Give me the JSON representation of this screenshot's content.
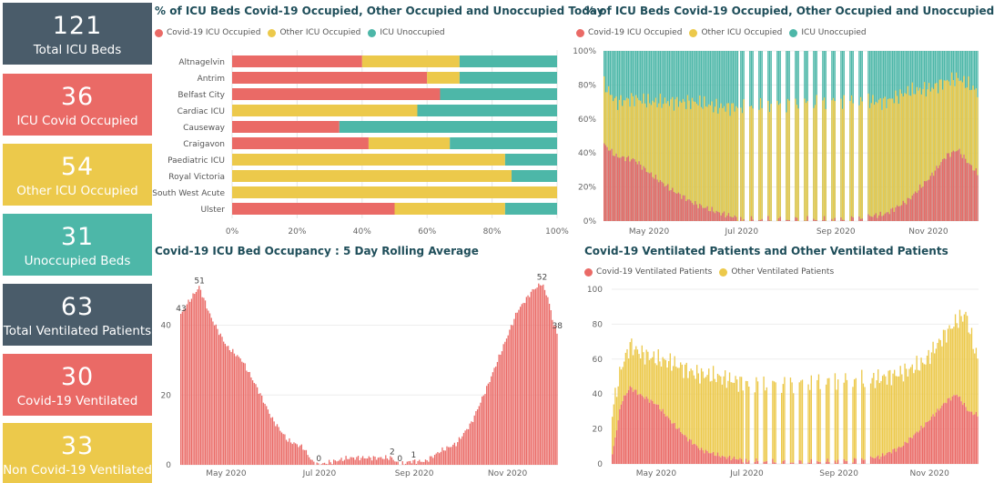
{
  "colors": {
    "covid": "#EA6A66",
    "other": "#ECC94B",
    "unocc": "#4DB7A8",
    "dark": "#4A5C6A"
  },
  "cards": [
    {
      "value": "121",
      "label": "Total ICU Beds",
      "color": "#4A5C6A"
    },
    {
      "value": "36",
      "label": "ICU Covid Occupied",
      "color": "#EA6A66"
    },
    {
      "value": "54",
      "label": "Other ICU Occupied",
      "color": "#ECC94B"
    },
    {
      "value": "31",
      "label": "Unoccupied Beds",
      "color": "#4DB7A8"
    },
    {
      "value": "63",
      "label": "Total Ventilated Patients",
      "color": "#4A5C6A"
    },
    {
      "value": "30",
      "label": "Covid-19 Ventilated",
      "color": "#EA6A66"
    },
    {
      "value": "33",
      "label": "Non Covid-19 Ventilated",
      "color": "#ECC94B"
    }
  ],
  "panels": {
    "today": {
      "title": "% of ICU Beds Covid-19 Occupied, Other Occupied and Unoccupied Today",
      "legend": [
        "Covid-19 ICU Occupied",
        "Other ICU Occupied",
        "ICU Unoccupied"
      ]
    },
    "trend": {
      "title": "% of ICU Beds Covid-19 Occupied, Other Occupied and Unoccupied",
      "legend": [
        "Covid-19 ICU Occupied",
        "Other ICU Occupied",
        "ICU Unoccupied"
      ]
    },
    "rolling": {
      "title": "Covid-19 ICU Bed Occupancy : 5 Day Rolling Average"
    },
    "vent": {
      "title": "Covid-19 Ventilated Patients and Other Ventilated Patients",
      "legend": [
        "Covid-19 Ventilated Patients",
        "Other Ventilated Patients"
      ]
    }
  },
  "chart_data": [
    {
      "type": "bar",
      "stacked": true,
      "orientation": "horizontal",
      "title": "% of ICU Beds Covid-19 Occupied, Other Occupied and Unoccupied Today",
      "categories": [
        "Altnagelvin",
        "Antrim",
        "Belfast City",
        "Cardiac ICU",
        "Causeway",
        "Craigavon",
        "Paediatric ICU",
        "Royal Victoria",
        "South West Acute",
        "Ulster"
      ],
      "series": [
        {
          "name": "Covid-19 ICU Occupied",
          "values": [
            40,
            60,
            64,
            0,
            33,
            42,
            0,
            0,
            0,
            50
          ]
        },
        {
          "name": "Other ICU Occupied",
          "values": [
            30,
            10,
            0,
            57,
            0,
            25,
            84,
            86,
            100,
            34
          ]
        },
        {
          "name": "ICU Unoccupied",
          "values": [
            30,
            30,
            36,
            43,
            67,
            33,
            16,
            14,
            0,
            16
          ]
        }
      ],
      "xlim": [
        0,
        100
      ],
      "xticks": [
        "0%",
        "20%",
        "40%",
        "60%",
        "80%",
        "100%"
      ]
    },
    {
      "type": "bar",
      "stacked": true,
      "title": "% of ICU Beds Covid-19 Occupied, Other Occupied and Unoccupied",
      "x_range": [
        "2020-04-01",
        "2020-12-03"
      ],
      "xticks": [
        "May 2020",
        "Jul 2020",
        "Sep 2020",
        "Nov 2020"
      ],
      "yticks": [
        "0%",
        "20%",
        "40%",
        "60%",
        "80%",
        "100%"
      ],
      "ylim": [
        0,
        100
      ],
      "series_keyframes": {
        "Covid-19 ICU Occupied": [
          [
            0,
            45
          ],
          [
            8,
            38
          ],
          [
            20,
            36
          ],
          [
            30,
            28
          ],
          [
            45,
            18
          ],
          [
            60,
            10
          ],
          [
            75,
            5
          ],
          [
            91,
            1
          ],
          [
            120,
            1
          ],
          [
            160,
            1
          ],
          [
            185,
            4
          ],
          [
            200,
            12
          ],
          [
            215,
            26
          ],
          [
            225,
            38
          ],
          [
            233,
            42
          ],
          [
            240,
            34
          ],
          [
            246,
            28
          ]
        ],
        "Other ICU Occupied": [
          [
            0,
            35
          ],
          [
            8,
            32
          ],
          [
            20,
            36
          ],
          [
            30,
            42
          ],
          [
            45,
            52
          ],
          [
            60,
            60
          ],
          [
            75,
            62
          ],
          [
            91,
            66
          ],
          [
            120,
            68
          ],
          [
            160,
            70
          ],
          [
            185,
            66
          ],
          [
            200,
            64
          ],
          [
            215,
            52
          ],
          [
            225,
            44
          ],
          [
            233,
            42
          ],
          [
            240,
            46
          ],
          [
            246,
            48
          ]
        ]
      }
    },
    {
      "type": "bar",
      "title": "Covid-19 ICU Bed Occupancy : 5 Day Rolling Average",
      "x_range": [
        "2020-04-01",
        "2020-12-03"
      ],
      "xticks": [
        "May 2020",
        "Jul 2020",
        "Sep 2020",
        "Nov 2020"
      ],
      "yticks": [
        "0",
        "20",
        "40"
      ],
      "ylim": [
        0,
        55
      ],
      "keyframes": [
        [
          0,
          43
        ],
        [
          4,
          46
        ],
        [
          12,
          51
        ],
        [
          20,
          42
        ],
        [
          30,
          34
        ],
        [
          40,
          30
        ],
        [
          50,
          22
        ],
        [
          60,
          13
        ],
        [
          70,
          7
        ],
        [
          80,
          5
        ],
        [
          86,
          1
        ],
        [
          90,
          0
        ],
        [
          100,
          1
        ],
        [
          110,
          2
        ],
        [
          120,
          2
        ],
        [
          130,
          2
        ],
        [
          138,
          2
        ],
        [
          143,
          0
        ],
        [
          150,
          1
        ],
        [
          160,
          1
        ],
        [
          170,
          4
        ],
        [
          180,
          6
        ],
        [
          190,
          12
        ],
        [
          200,
          22
        ],
        [
          210,
          33
        ],
        [
          220,
          44
        ],
        [
          230,
          50
        ],
        [
          236,
          52
        ],
        [
          240,
          48
        ],
        [
          244,
          40
        ],
        [
          246,
          38
        ]
      ],
      "data_labels": [
        {
          "day": 0,
          "text": "43"
        },
        {
          "day": 12,
          "text": "51"
        },
        {
          "day": 90,
          "text": "0"
        },
        {
          "day": 138,
          "text": "2"
        },
        {
          "day": 143,
          "text": "0"
        },
        {
          "day": 152,
          "text": "1"
        },
        {
          "day": 236,
          "text": "52"
        },
        {
          "day": 246,
          "text": "38"
        }
      ]
    },
    {
      "type": "bar",
      "stacked": true,
      "title": "Covid-19 Ventilated Patients and Other Ventilated Patients",
      "x_range": [
        "2020-04-01",
        "2020-12-03"
      ],
      "xticks": [
        "May 2020",
        "Jul 2020",
        "Sep 2020",
        "Nov 2020"
      ],
      "yticks": [
        "0",
        "20",
        "40",
        "60",
        "80",
        "100"
      ],
      "ylim": [
        0,
        100
      ],
      "series_keyframes": {
        "Covid-19 Ventilated Patients": [
          [
            0,
            5
          ],
          [
            6,
            35
          ],
          [
            12,
            44
          ],
          [
            18,
            40
          ],
          [
            30,
            34
          ],
          [
            40,
            24
          ],
          [
            50,
            15
          ],
          [
            60,
            8
          ],
          [
            75,
            4
          ],
          [
            91,
            2
          ],
          [
            120,
            1
          ],
          [
            160,
            2
          ],
          [
            180,
            4
          ],
          [
            195,
            10
          ],
          [
            210,
            22
          ],
          [
            225,
            36
          ],
          [
            232,
            40
          ],
          [
            240,
            30
          ],
          [
            246,
            28
          ]
        ],
        "Other ventilated (stacked total)": [
          [
            0,
            30
          ],
          [
            6,
            55
          ],
          [
            12,
            68
          ],
          [
            18,
            64
          ],
          [
            30,
            60
          ],
          [
            40,
            58
          ],
          [
            55,
            52
          ],
          [
            70,
            50
          ],
          [
            90,
            46
          ],
          [
            120,
            46
          ],
          [
            150,
            48
          ],
          [
            175,
            48
          ],
          [
            195,
            52
          ],
          [
            210,
            58
          ],
          [
            222,
            72
          ],
          [
            232,
            82
          ],
          [
            238,
            86
          ],
          [
            242,
            72
          ],
          [
            246,
            60
          ]
        ]
      }
    }
  ]
}
